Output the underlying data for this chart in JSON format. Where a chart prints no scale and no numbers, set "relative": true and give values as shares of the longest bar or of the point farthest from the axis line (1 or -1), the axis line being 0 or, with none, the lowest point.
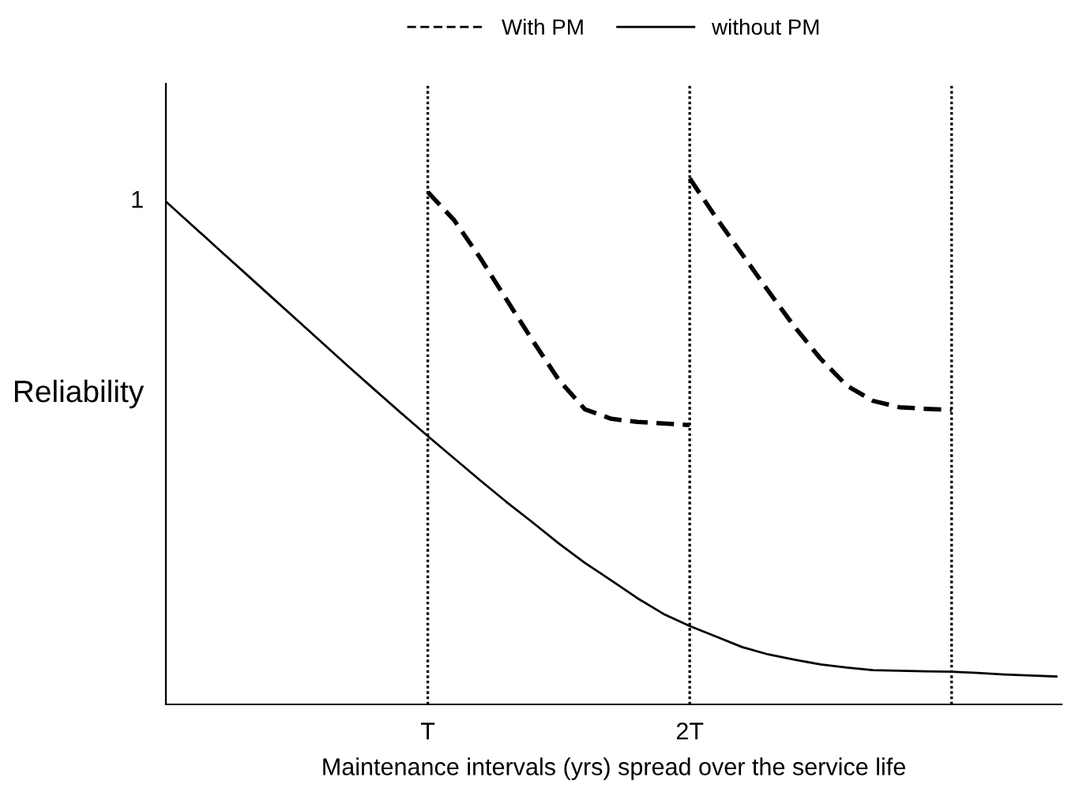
{
  "chart_data": {
    "type": "line",
    "relative": true,
    "xlabel": "Maintenance intervals (yrs) spread over the service life",
    "ylabel": "Reliability",
    "categories": [
      null,
      null,
      null,
      null,
      null,
      null,
      null,
      null,
      null,
      null,
      "T",
      null,
      null,
      null,
      null,
      null,
      null,
      null,
      null,
      null,
      "2T",
      null,
      null,
      null,
      null,
      null,
      null,
      null,
      null,
      null,
      null,
      null,
      null,
      null,
      null
    ],
    "series": [
      {
        "name": "With PM",
        "color": "#000000",
        "line_style": "dashed",
        "values": [
          null,
          null,
          null,
          null,
          null,
          null,
          null,
          null,
          null,
          null,
          0.974,
          0.921,
          0.849,
          0.77,
          0.692,
          0.617,
          0.561,
          0.543,
          0.537,
          0.534,
          0.531,
          null,
          null,
          null,
          null,
          null,
          null,
          null,
          null,
          null,
          null,
          null,
          null,
          null,
          null
        ]
      },
      {
        "color": "#000000",
        "line_style": "dashed",
        "values": [
          null,
          null,
          null,
          null,
          null,
          null,
          null,
          null,
          null,
          null,
          null,
          null,
          null,
          null,
          null,
          null,
          null,
          null,
          null,
          null,
          1.0,
          0.926,
          0.856,
          0.786,
          0.718,
          0.657,
          0.606,
          0.577,
          0.565,
          0.562,
          0.56,
          null,
          null,
          null,
          null
        ]
      },
      {
        "name": "without PM",
        "color": "#000000",
        "line_style": "solid",
        "values": [
          0.956,
          0.911,
          0.866,
          0.821,
          0.776,
          0.731,
          0.686,
          0.641,
          0.597,
          0.553,
          0.51,
          0.468,
          0.426,
          0.385,
          0.346,
          0.306,
          0.269,
          0.236,
          0.202,
          0.172,
          0.149,
          0.129,
          0.109,
          0.095,
          0.085,
          0.076,
          0.07,
          0.065,
          0.064,
          0.063,
          0.062,
          0.06,
          0.057,
          0.055,
          0.053
        ]
      }
    ],
    "annotations": [
      "1"
    ],
    "legend": "top",
    "grid": "x"
  }
}
